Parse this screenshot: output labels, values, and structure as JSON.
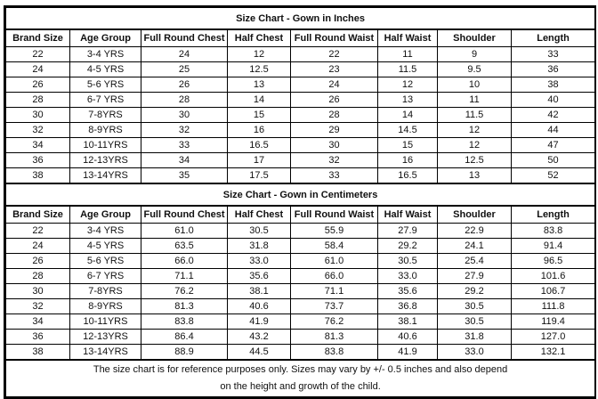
{
  "inches": {
    "title": "Size Chart - Gown in Inches",
    "headers": [
      "Brand Size",
      "Age Group",
      "Full Round Chest",
      "Half Chest",
      "Full Round Waist",
      "Half Waist",
      "Shoulder",
      "Length"
    ],
    "rows": [
      [
        "22",
        "3-4 YRS",
        "24",
        "12",
        "22",
        "11",
        "9",
        "33"
      ],
      [
        "24",
        "4-5 YRS",
        "25",
        "12.5",
        "23",
        "11.5",
        "9.5",
        "36"
      ],
      [
        "26",
        "5-6 YRS",
        "26",
        "13",
        "24",
        "12",
        "10",
        "38"
      ],
      [
        "28",
        "6-7 YRS",
        "28",
        "14",
        "26",
        "13",
        "11",
        "40"
      ],
      [
        "30",
        "7-8YRS",
        "30",
        "15",
        "28",
        "14",
        "11.5",
        "42"
      ],
      [
        "32",
        "8-9YRS",
        "32",
        "16",
        "29",
        "14.5",
        "12",
        "44"
      ],
      [
        "34",
        "10-11YRS",
        "33",
        "16.5",
        "30",
        "15",
        "12",
        "47"
      ],
      [
        "36",
        "12-13YRS",
        "34",
        "17",
        "32",
        "16",
        "12.5",
        "50"
      ],
      [
        "38",
        "13-14YRS",
        "35",
        "17.5",
        "33",
        "16.5",
        "13",
        "52"
      ]
    ]
  },
  "centimeters": {
    "title": "Size Chart - Gown in Centimeters",
    "headers": [
      "Brand Size",
      "Age Group",
      "Full Round Chest",
      "Half Chest",
      "Full Round Waist",
      "Half Waist",
      "Shoulder",
      "Length"
    ],
    "rows": [
      [
        "22",
        "3-4 YRS",
        "61.0",
        "30.5",
        "55.9",
        "27.9",
        "22.9",
        "83.8"
      ],
      [
        "24",
        "4-5 YRS",
        "63.5",
        "31.8",
        "58.4",
        "29.2",
        "24.1",
        "91.4"
      ],
      [
        "26",
        "5-6 YRS",
        "66.0",
        "33.0",
        "61.0",
        "30.5",
        "25.4",
        "96.5"
      ],
      [
        "28",
        "6-7 YRS",
        "71.1",
        "35.6",
        "66.0",
        "33.0",
        "27.9",
        "101.6"
      ],
      [
        "30",
        "7-8YRS",
        "76.2",
        "38.1",
        "71.1",
        "35.6",
        "29.2",
        "106.7"
      ],
      [
        "32",
        "8-9YRS",
        "81.3",
        "40.6",
        "73.7",
        "36.8",
        "30.5",
        "111.8"
      ],
      [
        "34",
        "10-11YRS",
        "83.8",
        "41.9",
        "76.2",
        "38.1",
        "30.5",
        "119.4"
      ],
      [
        "36",
        "12-13YRS",
        "86.4",
        "43.2",
        "81.3",
        "40.6",
        "31.8",
        "127.0"
      ],
      [
        "38",
        "13-14YRS",
        "88.9",
        "44.5",
        "83.8",
        "41.9",
        "33.0",
        "132.1"
      ]
    ]
  },
  "footnote": {
    "line1": "The size chart is for reference purposes only. Sizes may vary by +/- 0.5 inches and also depend",
    "line2": "on the height and growth of the child."
  }
}
